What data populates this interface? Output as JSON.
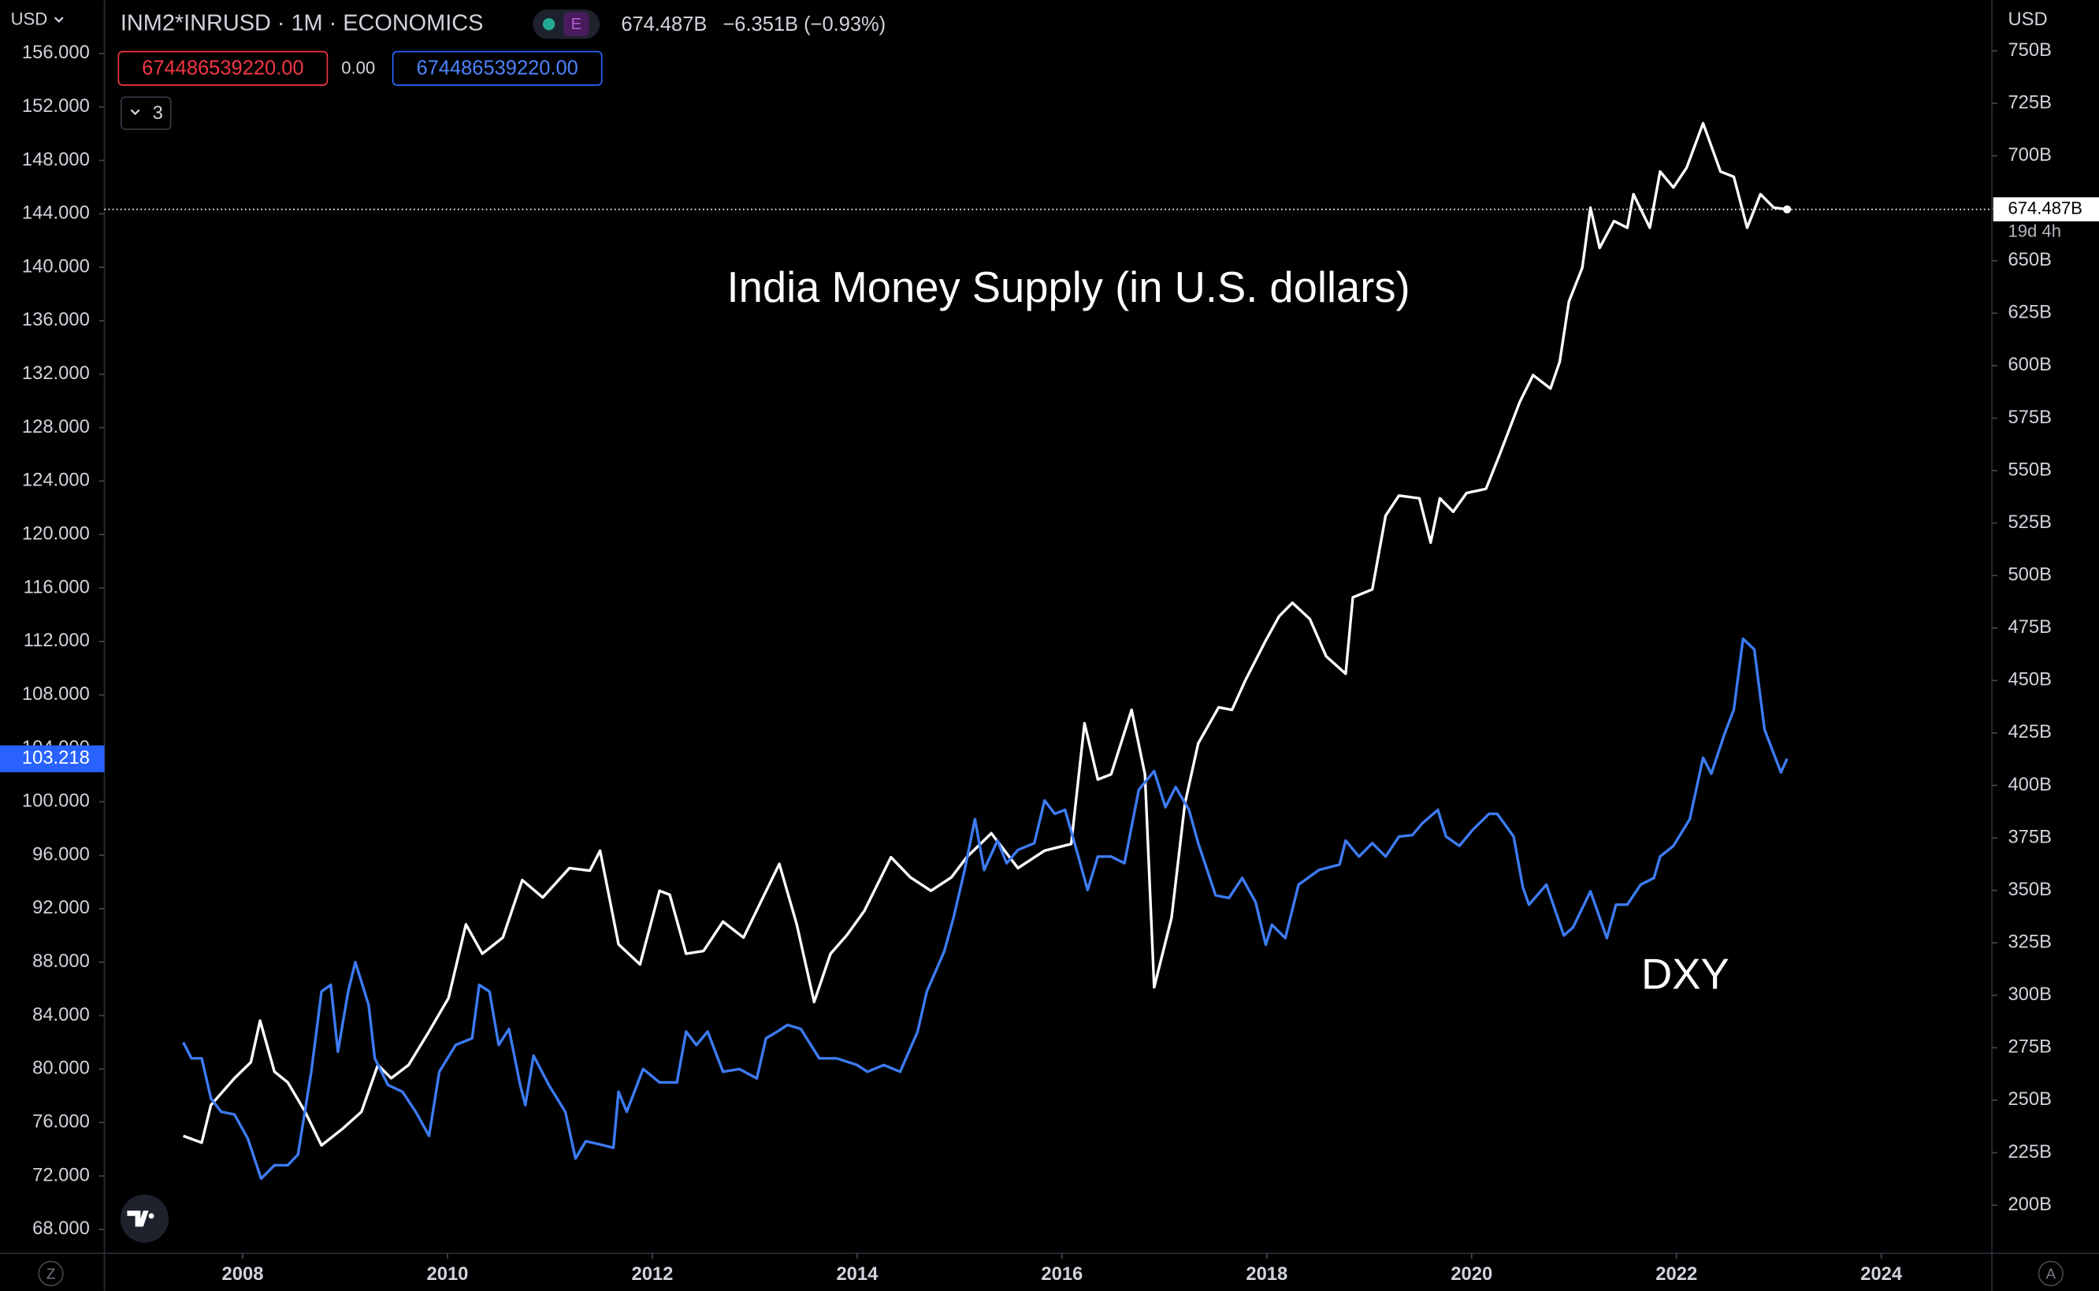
{
  "header": {
    "currency": "USD",
    "symbol": "INM2*INRUSD · 1M · ECONOMICS",
    "badge": "E",
    "last": "674.487B",
    "change": "−6.351B (−0.93%)",
    "inputs": [
      "674486539220.00",
      "0.00",
      "674486539220.00"
    ],
    "collapse": "3"
  },
  "right_unit": "USD",
  "corners": [
    "Z",
    "A"
  ],
  "countdown": "19d 4h",
  "chart_data": {
    "type": "line",
    "xlim": [
      2006.65,
      2025.08
    ],
    "xticks": [
      2008,
      2010,
      2012,
      2014,
      2016,
      2018,
      2020,
      2022,
      2024
    ],
    "ylim": [
      66.2,
      160
    ],
    "yticks": [
      {
        "value": 68,
        "label": "68.000"
      },
      {
        "value": 72,
        "label": "72.000"
      },
      {
        "value": 76,
        "label": "76.000"
      },
      {
        "value": 80,
        "label": "80.000"
      },
      {
        "value": 84,
        "label": "84.000"
      },
      {
        "value": 88,
        "label": "88.000"
      },
      {
        "value": 92,
        "label": "92.000"
      },
      {
        "value": 96,
        "label": "96.000"
      },
      {
        "value": 100,
        "label": "100.000"
      },
      {
        "value": 104,
        "label": "104.000"
      },
      {
        "value": 108,
        "label": "108.000"
      },
      {
        "value": 112,
        "label": "112.000"
      },
      {
        "value": 116,
        "label": "116.000"
      },
      {
        "value": 120,
        "label": "120.000"
      },
      {
        "value": 124,
        "label": "124.000"
      },
      {
        "value": 128,
        "label": "128.000"
      },
      {
        "value": 132,
        "label": "132.000"
      },
      {
        "value": 136,
        "label": "136.000"
      },
      {
        "value": 140,
        "label": "140.000"
      },
      {
        "value": 144,
        "label": "144.000"
      },
      {
        "value": 148,
        "label": "148.000"
      },
      {
        "value": 152,
        "label": "152.000"
      },
      {
        "value": 156,
        "label": "156.000"
      }
    ],
    "y2lim": [
      177,
      774.2
    ],
    "y2ticks": [
      {
        "value": 200,
        "label": "200B"
      },
      {
        "value": 225,
        "label": "225B"
      },
      {
        "value": 250,
        "label": "250B"
      },
      {
        "value": 275,
        "label": "275B"
      },
      {
        "value": 300,
        "label": "300B"
      },
      {
        "value": 325,
        "label": "325B"
      },
      {
        "value": 350,
        "label": "350B"
      },
      {
        "value": 375,
        "label": "375B"
      },
      {
        "value": 400,
        "label": "400B"
      },
      {
        "value": 425,
        "label": "425B"
      },
      {
        "value": 450,
        "label": "450B"
      },
      {
        "value": 475,
        "label": "475B"
      },
      {
        "value": 500,
        "label": "500B"
      },
      {
        "value": 525,
        "label": "525B"
      },
      {
        "value": 550,
        "label": "550B"
      },
      {
        "value": 575,
        "label": "575B"
      },
      {
        "value": 600,
        "label": "600B"
      },
      {
        "value": 625,
        "label": "625B"
      },
      {
        "value": 650,
        "label": "650B"
      },
      {
        "value": 675,
        "label": "675B"
      },
      {
        "value": 700,
        "label": "700B"
      },
      {
        "value": 725,
        "label": "725B"
      },
      {
        "value": 750,
        "label": "750B"
      }
    ],
    "series": [
      {
        "name": "India Money Supply (in U.S. dollars)",
        "color": "#ffffff",
        "axis": "y2",
        "last_label": "674.487B",
        "x": [
          2007.42,
          2007.6,
          2007.69,
          2007.92,
          2008.08,
          2008.17,
          2008.31,
          2008.44,
          2008.61,
          2008.77,
          2008.97,
          2009.16,
          2009.32,
          2009.45,
          2009.62,
          2009.82,
          2010.01,
          2010.18,
          2010.34,
          2010.54,
          2010.73,
          2010.93,
          2011.19,
          2011.39,
          2011.49,
          2011.67,
          2011.88,
          2012.07,
          2012.17,
          2012.33,
          2012.5,
          2012.69,
          2012.89,
          2013.08,
          2013.24,
          2013.41,
          2013.58,
          2013.74,
          2013.9,
          2014.07,
          2014.2,
          2014.33,
          2014.52,
          2014.72,
          2014.92,
          2015.07,
          2015.31,
          2015.57,
          2015.83,
          2016.09,
          2016.22,
          2016.35,
          2016.48,
          2016.68,
          2016.81,
          2016.9,
          2017.07,
          2017.2,
          2017.33,
          2017.53,
          2017.66,
          2017.79,
          2017.99,
          2018.12,
          2018.25,
          2018.42,
          2018.58,
          2018.77,
          2018.84,
          2019.03,
          2019.16,
          2019.29,
          2019.49,
          2019.6,
          2019.69,
          2019.82,
          2019.95,
          2020.14,
          2020.27,
          2020.47,
          2020.6,
          2020.77,
          2020.86,
          2020.95,
          2021.08,
          2021.16,
          2021.25,
          2021.39,
          2021.52,
          2021.58,
          2021.74,
          2021.84,
          2021.97,
          2022.1,
          2022.26,
          2022.43,
          2022.56,
          2022.69,
          2022.82,
          2022.95,
          2023.08
        ],
        "values": [
          233.0,
          229.8,
          247.7,
          260.5,
          268.1,
          287.9,
          263.6,
          258.5,
          244.5,
          228.5,
          236.2,
          244.5,
          266.8,
          260.5,
          266.8,
          282.8,
          298.7,
          333.8,
          319.8,
          327.5,
          354.9,
          346.6,
          360.6,
          359.4,
          368.9,
          324.3,
          314.7,
          349.8,
          347.9,
          319.8,
          321.1,
          335.1,
          327.5,
          346.6,
          362.6,
          333.8,
          296.8,
          319.8,
          328.7,
          340.2,
          353.0,
          365.8,
          356.2,
          349.8,
          356.2,
          365.8,
          377.2,
          360.6,
          368.9,
          372.1,
          429.6,
          402.8,
          405.3,
          436.0,
          405.3,
          303.8,
          337.0,
          391.3,
          420.0,
          437.2,
          436.0,
          450.0,
          469.1,
          480.6,
          487.0,
          479.3,
          461.5,
          453.2,
          489.6,
          493.4,
          528.5,
          538.1,
          536.8,
          515.7,
          536.8,
          530.4,
          539.3,
          541.3,
          557.2,
          582.7,
          595.5,
          589.1,
          601.9,
          630.6,
          646.6,
          675.3,
          656.1,
          668.9,
          665.7,
          681.7,
          665.7,
          692.5,
          684.9,
          694.4,
          715.5,
          692.5,
          690.0,
          665.7,
          681.7,
          675.3,
          674.487
        ]
      },
      {
        "name": "DXY",
        "color": "#3d7bf2",
        "x": [
          2007.42,
          2007.5,
          2007.6,
          2007.69,
          2007.79,
          2007.92,
          2008.05,
          2008.18,
          2008.31,
          2008.44,
          2008.54,
          2008.67,
          2008.77,
          2008.86,
          2008.93,
          2009.03,
          2009.1,
          2009.23,
          2009.29,
          2009.42,
          2009.56,
          2009.69,
          2009.82,
          2009.92,
          2010.08,
          2010.24,
          2010.31,
          2010.41,
          2010.5,
          2010.6,
          2010.71,
          2010.76,
          2010.84,
          2010.99,
          2011.15,
          2011.25,
          2011.35,
          2011.52,
          2011.62,
          2011.67,
          2011.75,
          2011.91,
          2012.07,
          2012.24,
          2012.33,
          2012.43,
          2012.54,
          2012.69,
          2012.85,
          2013.02,
          2013.11,
          2013.22,
          2013.32,
          2013.45,
          2013.63,
          2013.8,
          2014.0,
          2014.1,
          2014.26,
          2014.42,
          2014.59,
          2014.68,
          2014.85,
          2014.94,
          2015.05,
          2015.15,
          2015.24,
          2015.37,
          2015.46,
          2015.57,
          2015.73,
          2015.83,
          2015.93,
          2016.03,
          2016.16,
          2016.25,
          2016.35,
          2016.48,
          2016.61,
          2016.75,
          2016.9,
          2017.01,
          2017.11,
          2017.24,
          2017.33,
          2017.5,
          2017.63,
          2017.76,
          2017.89,
          2017.99,
          2018.05,
          2018.18,
          2018.31,
          2018.51,
          2018.71,
          2018.77,
          2018.9,
          2019.03,
          2019.16,
          2019.29,
          2019.42,
          2019.52,
          2019.67,
          2019.75,
          2019.88,
          2020.01,
          2020.17,
          2020.25,
          2020.41,
          2020.5,
          2020.56,
          2020.73,
          2020.9,
          2020.99,
          2021.16,
          2021.32,
          2021.41,
          2021.52,
          2021.65,
          2021.78,
          2021.84,
          2021.97,
          2022.13,
          2022.26,
          2022.34,
          2022.47,
          2022.56,
          2022.65,
          2022.76,
          2022.86,
          2023.02,
          2023.08
        ],
        "values": [
          82.0,
          80.8,
          80.8,
          77.8,
          76.8,
          76.6,
          74.8,
          71.8,
          72.8,
          72.8,
          73.6,
          79.8,
          85.8,
          86.3,
          81.3,
          85.8,
          88.0,
          84.8,
          80.8,
          78.8,
          78.3,
          76.8,
          75.0,
          79.8,
          81.8,
          82.3,
          86.3,
          85.8,
          81.8,
          83.0,
          78.8,
          77.3,
          81.0,
          78.8,
          76.8,
          73.3,
          74.6,
          74.3,
          74.1,
          78.3,
          76.8,
          80.0,
          79.0,
          79.0,
          82.8,
          81.8,
          82.8,
          79.8,
          80.0,
          79.3,
          82.3,
          82.8,
          83.3,
          83.0,
          80.8,
          80.8,
          80.3,
          79.8,
          80.3,
          79.8,
          82.8,
          85.8,
          88.8,
          91.3,
          94.9,
          98.7,
          94.9,
          97.1,
          95.4,
          96.4,
          96.9,
          100.1,
          99.1,
          99.4,
          95.9,
          93.4,
          95.9,
          95.9,
          95.4,
          100.9,
          102.3,
          99.6,
          101.1,
          99.4,
          96.9,
          93.0,
          92.8,
          94.3,
          92.5,
          89.3,
          90.8,
          89.8,
          93.8,
          94.9,
          95.3,
          97.1,
          95.9,
          96.9,
          95.9,
          97.4,
          97.5,
          98.4,
          99.4,
          97.4,
          96.7,
          97.9,
          99.1,
          99.1,
          97.4,
          93.6,
          92.3,
          93.8,
          90.0,
          90.6,
          93.3,
          89.8,
          92.3,
          92.3,
          93.8,
          94.3,
          95.9,
          96.7,
          98.7,
          103.3,
          102.1,
          105.1,
          106.9,
          112.2,
          111.4,
          105.4,
          102.2,
          103.218
        ]
      }
    ]
  }
}
